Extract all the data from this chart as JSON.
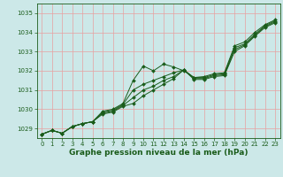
{
  "title": "Graphe pression niveau de la mer (hPa)",
  "bg_color": "#cce8e8",
  "grid_color": "#e8a0a0",
  "line_color": "#1a5c1a",
  "xlim": [
    -0.5,
    23.5
  ],
  "ylim": [
    1028.5,
    1035.5
  ],
  "yticks": [
    1029,
    1030,
    1031,
    1032,
    1033,
    1034,
    1035
  ],
  "xticks": [
    0,
    1,
    2,
    3,
    4,
    5,
    6,
    7,
    8,
    9,
    10,
    11,
    12,
    13,
    14,
    15,
    16,
    17,
    18,
    19,
    20,
    21,
    22,
    23
  ],
  "series": [
    [
      1028.7,
      1028.9,
      1028.75,
      1029.1,
      1029.25,
      1029.35,
      1029.9,
      1030.0,
      1030.3,
      1031.5,
      1032.25,
      1032.0,
      1032.35,
      1032.2,
      1032.0,
      1031.65,
      1031.7,
      1031.85,
      1031.9,
      1033.3,
      1033.5,
      1034.0,
      1034.4,
      1034.65
    ],
    [
      1028.7,
      1028.9,
      1028.75,
      1029.1,
      1029.25,
      1029.35,
      1029.85,
      1029.95,
      1030.25,
      1031.0,
      1031.3,
      1031.5,
      1031.7,
      1031.9,
      1032.05,
      1031.65,
      1031.65,
      1031.8,
      1031.85,
      1033.2,
      1033.4,
      1033.9,
      1034.35,
      1034.6
    ],
    [
      1028.7,
      1028.9,
      1028.75,
      1029.1,
      1029.25,
      1029.35,
      1029.8,
      1029.9,
      1030.2,
      1030.6,
      1031.0,
      1031.2,
      1031.5,
      1031.7,
      1032.05,
      1031.6,
      1031.6,
      1031.75,
      1031.8,
      1033.1,
      1033.35,
      1033.85,
      1034.3,
      1034.55
    ],
    [
      1028.7,
      1028.9,
      1028.75,
      1029.1,
      1029.25,
      1029.35,
      1029.75,
      1029.85,
      1030.15,
      1030.3,
      1030.7,
      1031.0,
      1031.3,
      1031.6,
      1032.05,
      1031.55,
      1031.55,
      1031.7,
      1031.75,
      1033.0,
      1033.3,
      1033.8,
      1034.25,
      1034.5
    ]
  ],
  "marker": "D",
  "markersize": 2.0,
  "linewidth": 0.7,
  "title_fontsize": 6.5,
  "tick_fontsize": 5.0,
  "label_color": "#1a5c1a",
  "spine_color": "#1a5c1a"
}
